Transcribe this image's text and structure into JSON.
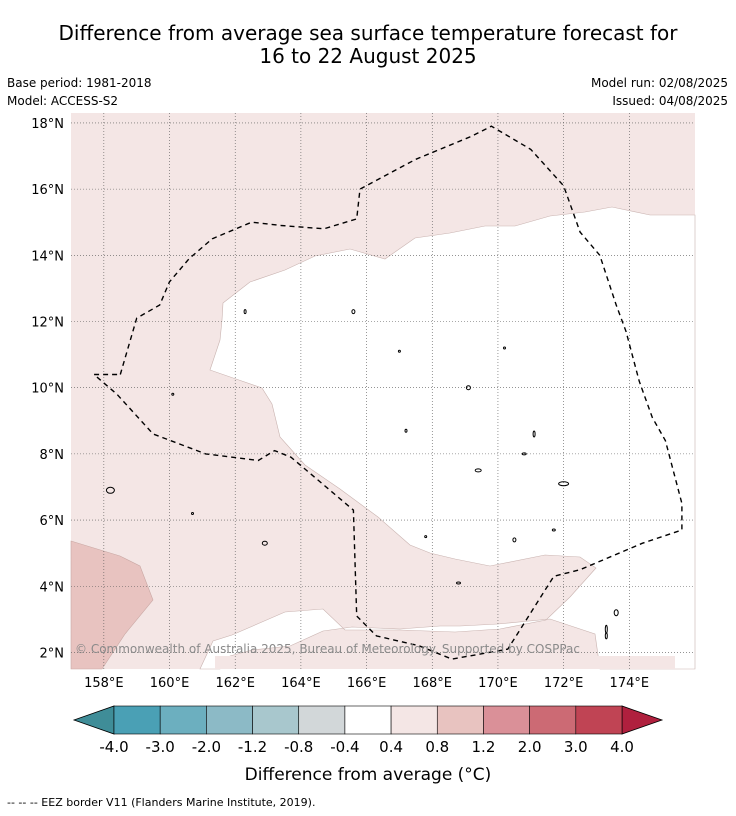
{
  "title_line1": "Difference from average sea surface temperature forecast for",
  "title_line2": "16 to 22 August 2025",
  "base_period": "Base period: 1981-2018",
  "model": "Model: ACCESS-S2",
  "model_run": "Model run: 02/08/2025",
  "issued": "Issued: 04/08/2025",
  "copyright": "© Commonwealth of Australia 2025, Bureau of Meteorology. Supported by COSPPac",
  "footnote": "--  --  -- EEZ border V11 (Flanders Marine Institute, 2019).",
  "chart_data": {
    "type": "map-contour",
    "xlabels": [
      "158°E",
      "160°E",
      "162°E",
      "164°E",
      "166°E",
      "168°E",
      "170°E",
      "172°E",
      "174°E"
    ],
    "ylabels": [
      "18°N",
      "16°N",
      "14°N",
      "12°N",
      "10°N",
      "8°N",
      "6°N",
      "4°N",
      "2°N"
    ],
    "lon_range": [
      157,
      176
    ],
    "lat_range": [
      1.5,
      18.3
    ],
    "grid": true,
    "colorbar": {
      "title": "Difference from average (°C)",
      "ticks": [
        "-4.0",
        "-3.0",
        "-2.0",
        "-1.2",
        "-0.8",
        "-0.4",
        "0.4",
        "0.8",
        "1.2",
        "2.0",
        "3.0",
        "4.0"
      ],
      "colors": [
        "#4aa0b5",
        "#6cafbf",
        "#8cbac6",
        "#a8c7cd",
        "#d2d7d9",
        "#ffffff",
        "#f4e6e5",
        "#e8c3c0",
        "#da9098",
        "#cc6a74",
        "#c04454"
      ],
      "extend_low_color": "#3f8d98",
      "extend_high_color": "#b0203e"
    },
    "fields": [
      {
        "range": "-0.4 to 0.4",
        "color": "#ffffff"
      },
      {
        "range": "0.4 to 0.8",
        "color": "#f4e6e5"
      },
      {
        "range": "0.8 to 1.2",
        "color": "#e8c3c0"
      }
    ],
    "eez_border": [
      [
        158.5,
        10.4
      ],
      [
        159,
        12.1
      ],
      [
        159.7,
        12.5
      ],
      [
        160,
        13.2
      ],
      [
        160.6,
        13.9
      ],
      [
        161.3,
        14.5
      ],
      [
        162.5,
        15
      ],
      [
        163.4,
        14.9
      ],
      [
        164.7,
        14.8
      ],
      [
        165.7,
        15.1
      ],
      [
        165.8,
        16
      ],
      [
        167.5,
        16.9
      ],
      [
        169.2,
        17.6
      ],
      [
        169.8,
        17.9
      ],
      [
        171,
        17.2
      ],
      [
        172,
        16.1
      ],
      [
        172.5,
        14.7
      ],
      [
        173.1,
        14
      ],
      [
        173.6,
        12.5
      ],
      [
        173.9,
        11.7
      ],
      [
        174.3,
        10.2
      ],
      [
        174.7,
        9.1
      ],
      [
        175.1,
        8.4
      ],
      [
        175.6,
        6.5
      ],
      [
        175.6,
        5.7
      ],
      [
        174.4,
        5.3
      ],
      [
        172.5,
        4.5
      ],
      [
        171.7,
        4.3
      ],
      [
        170.3,
        2.1
      ],
      [
        168.6,
        1.8
      ],
      [
        167.6,
        2.2
      ],
      [
        166.3,
        2.5
      ],
      [
        165.7,
        3.1
      ],
      [
        165.6,
        6.3
      ],
      [
        163.7,
        7.9
      ],
      [
        163.2,
        8.1
      ],
      [
        162.7,
        7.8
      ],
      [
        161.1,
        8
      ],
      [
        159.5,
        8.6
      ],
      [
        158.4,
        9.8
      ],
      [
        157.7,
        10.4
      ]
    ]
  }
}
